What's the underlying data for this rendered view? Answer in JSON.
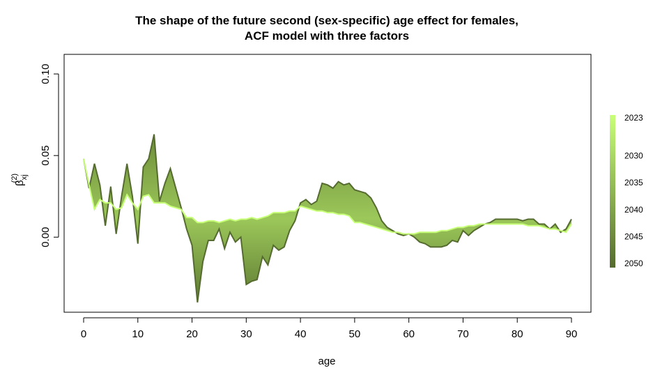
{
  "chart_data": {
    "type": "line",
    "title": [
      "The shape of the future second (sex-specific) age effect for females,",
      "ACF model with three factors"
    ],
    "xlabel": "age",
    "ylabel": {
      "base": "β",
      "sub": "xj",
      "sup": "(2)"
    },
    "x": [
      0,
      1,
      2,
      3,
      4,
      5,
      6,
      7,
      8,
      9,
      10,
      11,
      12,
      13,
      14,
      15,
      16,
      17,
      18,
      19,
      20,
      21,
      22,
      23,
      24,
      25,
      26,
      27,
      28,
      29,
      30,
      31,
      32,
      33,
      34,
      35,
      36,
      37,
      38,
      39,
      40,
      41,
      42,
      43,
      44,
      45,
      46,
      47,
      48,
      49,
      50,
      51,
      52,
      53,
      54,
      55,
      56,
      57,
      58,
      59,
      60,
      61,
      62,
      63,
      64,
      65,
      66,
      67,
      68,
      69,
      70,
      71,
      72,
      73,
      74,
      75,
      76,
      77,
      78,
      79,
      80,
      81,
      82,
      83,
      84,
      85,
      86,
      87,
      88,
      89,
      90
    ],
    "series": [
      {
        "year": 2023,
        "color": "#c8ff78",
        "values": [
          0.048,
          0.032,
          0.017,
          0.023,
          0.021,
          0.021,
          0.017,
          0.018,
          0.026,
          0.021,
          0.017,
          0.025,
          0.026,
          0.021,
          0.021,
          0.021,
          0.019,
          0.018,
          0.017,
          0.012,
          0.012,
          0.009,
          0.009,
          0.01,
          0.01,
          0.009,
          0.01,
          0.011,
          0.01,
          0.011,
          0.011,
          0.012,
          0.011,
          0.012,
          0.013,
          0.015,
          0.015,
          0.015,
          0.016,
          0.016,
          0.019,
          0.018,
          0.017,
          0.016,
          0.016,
          0.015,
          0.015,
          0.014,
          0.014,
          0.013,
          0.009,
          0.009,
          0.008,
          0.007,
          0.006,
          0.005,
          0.004,
          0.003,
          0.003,
          0.002,
          0.002,
          0.002,
          0.003,
          0.003,
          0.003,
          0.003,
          0.004,
          0.004,
          0.005,
          0.006,
          0.006,
          0.007,
          0.007,
          0.008,
          0.008,
          0.008,
          0.008,
          0.008,
          0.008,
          0.008,
          0.008,
          0.008,
          0.007,
          0.007,
          0.007,
          0.006,
          0.005,
          0.005,
          0.004,
          0.003,
          0.008
        ]
      },
      {
        "year": 2050,
        "color": "#556b2f",
        "values": [
          0.048,
          0.03,
          0.045,
          0.032,
          0.007,
          0.031,
          0.002,
          0.025,
          0.045,
          0.025,
          -0.004,
          0.043,
          0.048,
          0.063,
          0.022,
          0.033,
          0.042,
          0.03,
          0.018,
          0.005,
          -0.005,
          -0.04,
          -0.015,
          -0.002,
          -0.002,
          0.005,
          -0.007,
          0.003,
          -0.003,
          0.0,
          -0.029,
          -0.027,
          -0.026,
          -0.012,
          -0.017,
          -0.005,
          -0.008,
          -0.006,
          0.004,
          0.01,
          0.021,
          0.023,
          0.02,
          0.022,
          0.033,
          0.032,
          0.03,
          0.034,
          0.032,
          0.033,
          0.029,
          0.028,
          0.027,
          0.024,
          0.018,
          0.01,
          0.006,
          0.004,
          0.002,
          0.001,
          0.002,
          0.0,
          -0.003,
          -0.004,
          -0.006,
          -0.006,
          -0.006,
          -0.005,
          -0.002,
          -0.003,
          0.004,
          0.001,
          0.004,
          0.006,
          0.008,
          0.009,
          0.011,
          0.011,
          0.011,
          0.011,
          0.011,
          0.01,
          0.011,
          0.011,
          0.008,
          0.008,
          0.005,
          0.008,
          0.003,
          0.005,
          0.011
        ]
      }
    ],
    "xlim": [
      -3.6,
      93.6
    ],
    "xticks": [
      0,
      10,
      20,
      30,
      40,
      50,
      60,
      70,
      80,
      90
    ],
    "ylim": [
      -0.046,
      0.112
    ],
    "yticks": [
      {
        "value": 0,
        "label": "0.00"
      },
      {
        "value": 0.05,
        "label": "0.05"
      },
      {
        "value": 0.1,
        "label": "0.10"
      }
    ],
    "colorbar": {
      "lim": [
        2023,
        2050
      ],
      "ticks": [
        2023,
        2030,
        2035,
        2040,
        2045,
        2050
      ]
    },
    "grid": false
  }
}
